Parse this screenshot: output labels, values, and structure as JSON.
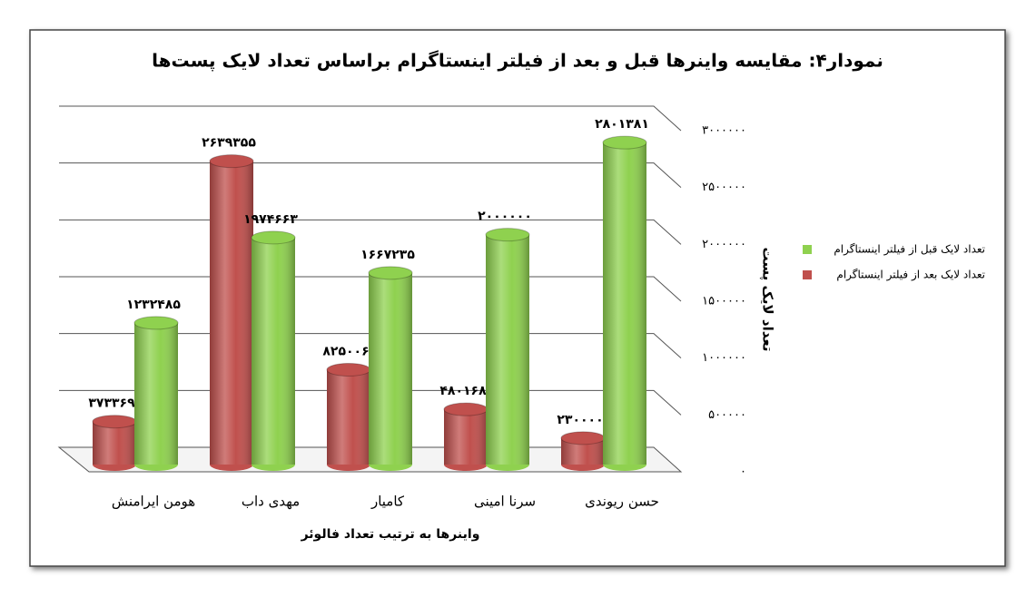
{
  "chart_data": {
    "type": "bar",
    "title": "نمودار۴: مقایسه واینرها قبل و بعد از فیلتر اینستاگرام براساس تعداد لایک پست‌ها",
    "x_label": "واینرها به ترتیب تعداد فالوئر",
    "y_label": "تعداد لایک پست",
    "categories": [
      "هومن ایرامنش",
      "مهدی داب",
      "کامیار",
      "سرنا امینی",
      "حسن ریوندی"
    ],
    "series": [
      {
        "name": "تعداد لایک قبل از فیلتر اینستاگرام",
        "color": "#8fd14f",
        "values": [
          1232485,
          1974663,
          1667235,
          2000000,
          2801381
        ],
        "value_labels": [
          "۱۲۳۲۴۸۵",
          "۱۹۷۴۶۶۳",
          "۱۶۶۷۲۳۵",
          "۲۰۰۰۰۰۰",
          "۲۸۰۱۳۸۱"
        ]
      },
      {
        "name": "تعداد لایک بعد از فیلتر اینستاگرام",
        "color": "#c0504d",
        "values": [
          373369,
          2639355,
          825006,
          480168,
          230000
        ],
        "value_labels": [
          "۳۷۳۳۶۹",
          "۲۶۳۹۳۵۵",
          "۸۲۵۰۰۶",
          "۴۸۰۱۶۸",
          "۲۳۰۰۰۰"
        ]
      }
    ],
    "ylim": [
      0,
      3000000
    ],
    "yticks": [
      {
        "value": 0,
        "label": "۰"
      },
      {
        "value": 500000,
        "label": "۵۰۰۰۰۰"
      },
      {
        "value": 1000000,
        "label": "۱۰۰۰۰۰۰"
      },
      {
        "value": 1500000,
        "label": "۱۵۰۰۰۰۰"
      },
      {
        "value": 2000000,
        "label": "۲۰۰۰۰۰۰"
      },
      {
        "value": 2500000,
        "label": "۲۵۰۰۰۰۰"
      },
      {
        "value": 3000000,
        "label": "۳۰۰۰۰۰۰"
      }
    ],
    "grid": true,
    "legend": "right"
  }
}
